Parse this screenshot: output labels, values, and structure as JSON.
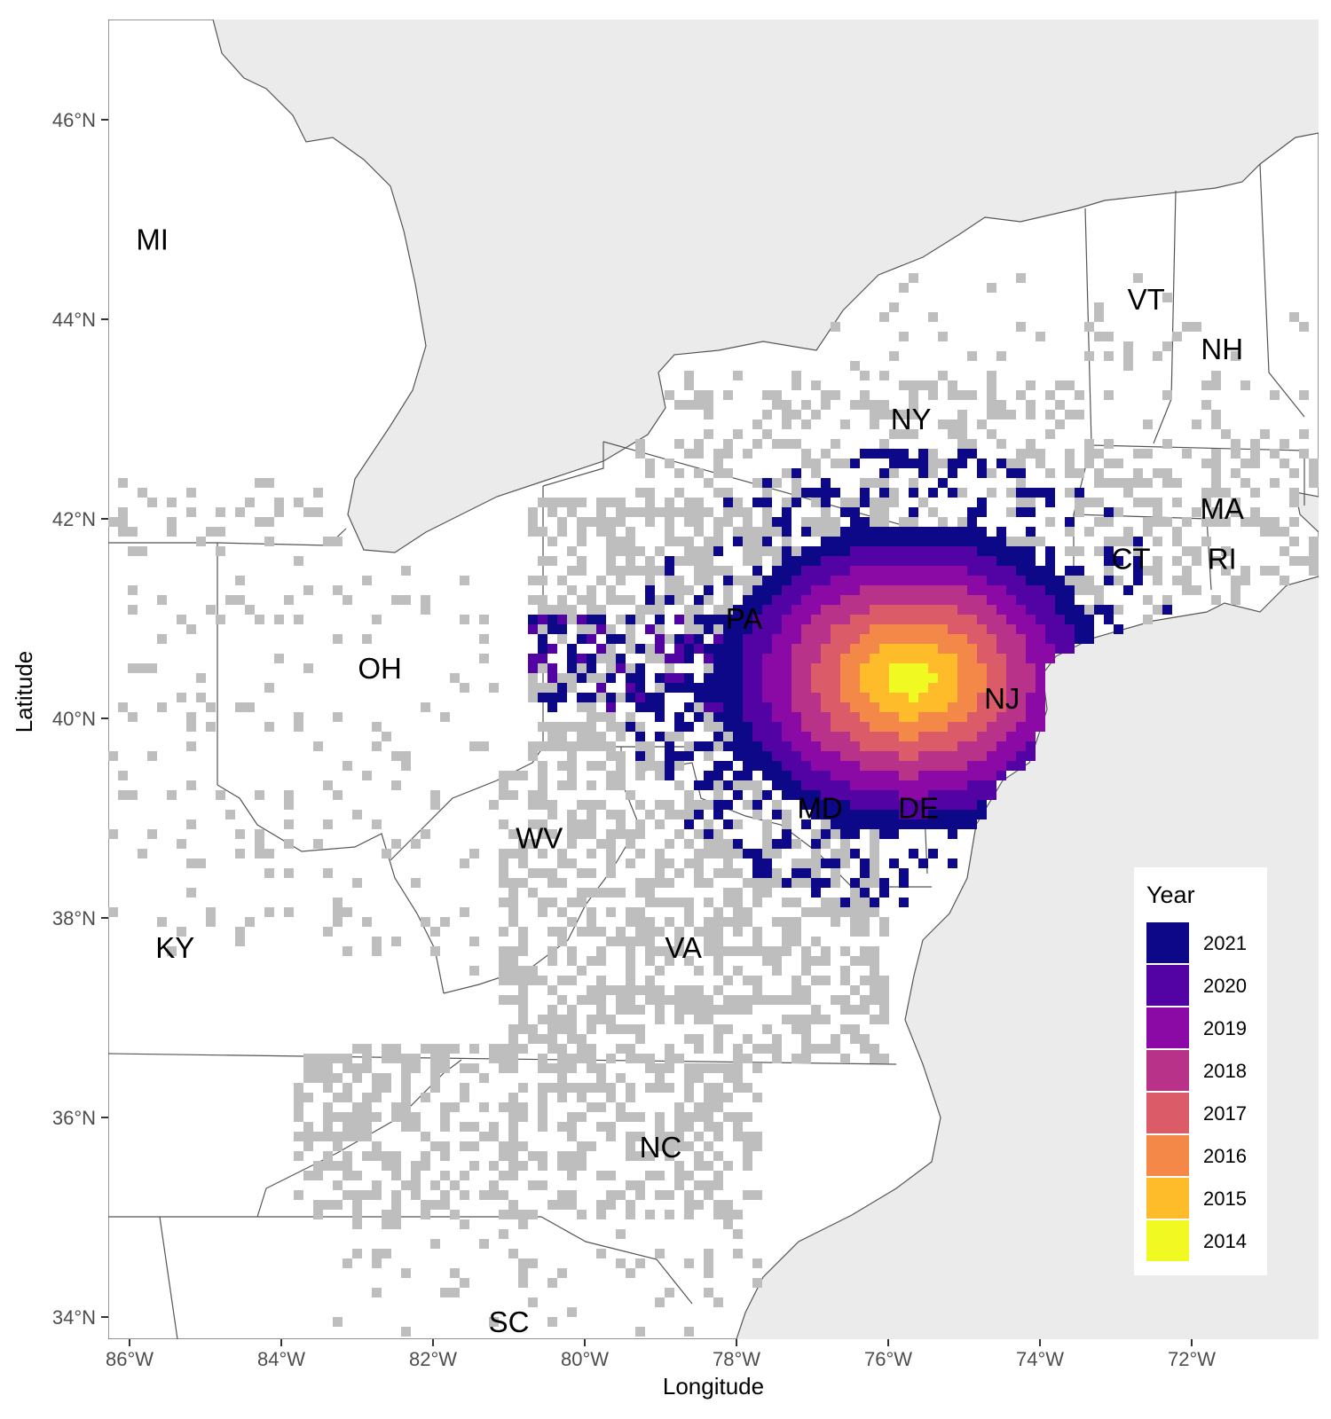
{
  "chart_data": {
    "type": "heatmap",
    "title": "",
    "xlabel": "Longitude",
    "ylabel": "Latitude",
    "xlim": [
      -86.3,
      -70.3
    ],
    "ylim": [
      33.8,
      47.0
    ],
    "x_ticks": [
      {
        "value": -86,
        "label": "86°W"
      },
      {
        "value": -84,
        "label": "84°W"
      },
      {
        "value": -82,
        "label": "82°W"
      },
      {
        "value": -80,
        "label": "80°W"
      },
      {
        "value": -78,
        "label": "78°W"
      },
      {
        "value": -76,
        "label": "76°W"
      },
      {
        "value": -74,
        "label": "74°W"
      },
      {
        "value": -72,
        "label": "72°W"
      }
    ],
    "y_ticks": [
      {
        "value": 46,
        "label": "46°N"
      },
      {
        "value": 44,
        "label": "44°N"
      },
      {
        "value": 42,
        "label": "42°N"
      },
      {
        "value": 40,
        "label": "40°N"
      },
      {
        "value": 38,
        "label": "38°N"
      },
      {
        "value": 36,
        "label": "36°N"
      },
      {
        "value": 34,
        "label": "34°N"
      }
    ],
    "background_color": "#ebebeb",
    "land_color": "#ffffff",
    "absent_cell_color": "#bebebe",
    "state_labels": [
      {
        "label": "MI",
        "lon": -85.7,
        "lat": 44.7
      },
      {
        "label": "VT",
        "lon": -72.6,
        "lat": 44.1
      },
      {
        "label": "NH",
        "lon": -71.6,
        "lat": 43.6
      },
      {
        "label": "NY",
        "lon": -75.7,
        "lat": 42.9
      },
      {
        "label": "MA",
        "lon": -71.6,
        "lat": 42.0
      },
      {
        "label": "CT",
        "lon": -72.8,
        "lat": 41.5
      },
      {
        "label": "RI",
        "lon": -71.6,
        "lat": 41.5
      },
      {
        "label": "PA",
        "lon": -77.9,
        "lat": 40.9
      },
      {
        "label": "OH",
        "lon": -82.7,
        "lat": 40.4
      },
      {
        "label": "NJ",
        "lon": -74.5,
        "lat": 40.1
      },
      {
        "label": "MD",
        "lon": -76.9,
        "lat": 39.0
      },
      {
        "label": "DE",
        "lon": -75.6,
        "lat": 39.0
      },
      {
        "label": "WV",
        "lon": -80.6,
        "lat": 38.7
      },
      {
        "label": "KY",
        "lon": -85.4,
        "lat": 37.6
      },
      {
        "label": "VA",
        "lon": -78.7,
        "lat": 37.6
      },
      {
        "label": "NC",
        "lon": -79.0,
        "lat": 35.6
      },
      {
        "label": "SC",
        "lon": -81.0,
        "lat": 33.85
      }
    ],
    "legend": {
      "title": "Year",
      "placement": "bottom-right",
      "entries": [
        {
          "label": "2021",
          "color": "#0d0887"
        },
        {
          "label": "2020",
          "color": "#5302a3"
        },
        {
          "label": "2019",
          "color": "#8b0aa5"
        },
        {
          "label": "2018",
          "color": "#b83289"
        },
        {
          "label": "2017",
          "color": "#db5c68"
        },
        {
          "label": "2016",
          "color": "#f48849"
        },
        {
          "label": "2015",
          "color": "#febc2a"
        },
        {
          "label": "2014",
          "color": "#f0f921"
        }
      ]
    },
    "spread": {
      "origin_year": 2014,
      "origin_lon": -75.7,
      "origin_lat": 40.4
    }
  }
}
